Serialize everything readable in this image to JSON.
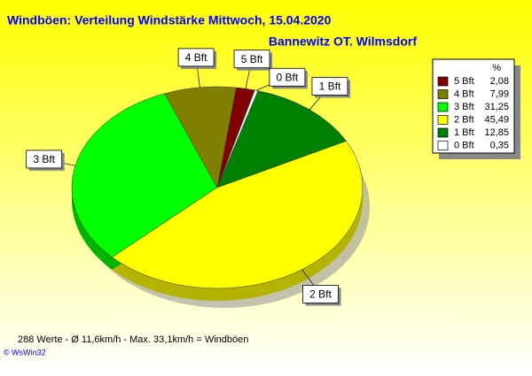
{
  "chart_data": {
    "type": "pie",
    "title": "Windböen: Verteilung Windstärke  Mittwoch, 15.04.2020",
    "subtitle": "Bannewitz OT. Wilmsdorf",
    "legend_header": "%",
    "categories": [
      "5 Bft",
      "4 Bft",
      "3 Bft",
      "2 Bft",
      "1 Bft",
      "0 Bft"
    ],
    "values": [
      2.08,
      7.99,
      31.25,
      45.49,
      12.85,
      0.35
    ],
    "value_labels": [
      "2,08",
      "7,99",
      "31,25",
      "45,49",
      "12,85",
      "0,35"
    ],
    "colors": [
      "#800000",
      "#808000",
      "#00ff00",
      "#ffff00",
      "#008000",
      "#ffffff"
    ],
    "legend": "top-right",
    "footer": "288 Werte   -   Ø 11,6km/h  -  Max. 33,1km/h = Windböen",
    "credit": "© WsWin32"
  }
}
